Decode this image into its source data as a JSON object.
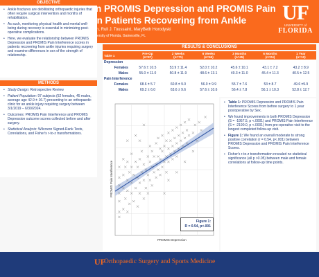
{
  "header": {
    "title": "Relationship Between PROMIS Depression and PROMIS Pain Interference Scores in Patients Recovering from Ankle Surgery",
    "authors": "Marissa Pazik, Ahmet T. Yildirim, Jennifer E. Hagen, Rull J. Toussaint, MaryBeth Horodyski",
    "affiliation": "Department of Orthopaedic Surgery & Sports Medicine, University of Florida, Gainesville, FL",
    "logo_mark": "UF",
    "logo_univ": "UNIVERSITY of",
    "logo_state": "FLORIDA"
  },
  "objective": {
    "heading": "OBJECTIVE",
    "bullets": [
      "Ankle fractures are debilitating orthopaedic injuries that often require surgical intervention and months of rehabilitation.",
      "As such, monitoring physical health and mental well-being during recovery is essential in minimizing post-operative complications.",
      "Here, we evaluate the relationship between PROMIS Depression and PROMIS Pain Interference scores in patients recovering from ankle injuries requiring surgery and examine differences in sex of the strength of relationship."
    ]
  },
  "methods": {
    "heading": "METHODS",
    "design_label": "Study Design",
    "design_text": ": Retrospective Review",
    "pop_label": "Patient Population",
    "pop_text": ": 97 subjects (52 females, 45 males, average age 42.9 ± 16.7) presenting to an orthopaedic clinic for an ankle injury requiring surgery between 3/1/2019 – 6/30/2024.",
    "outcomes_text": "Outcomes: PROMIS Pain Interference and PROMIS Depression outcome scores collected before and after surgery.",
    "stat_label": "Statistical Analysis",
    "stat_text": ": Wilcoxon Signed-Rank Tests, Correlations, and Fisher's r-to-z transformations."
  },
  "results": {
    "heading": "RESULTS & CONCLUSIONS",
    "table": {
      "corner": "Table 1",
      "columns": [
        "Pre-Op\n(n=97)",
        "2 Weeks\n(n=71)",
        "6 Weeks\n(n=55)",
        "3 Months\n(n=45)",
        "6 Months\n(n=24)",
        "1 Year\n(n=12)"
      ],
      "groups": [
        {
          "name": "Depression",
          "rows": [
            {
              "label": "Females",
              "values": [
                "57.6 ± 10.5",
                "53.9 ± 11.4",
                "52.0 ± 10.2",
                "45.6 ± 10.1",
                "43.1 ± 7.2",
                "43.2 ± 8.9"
              ]
            },
            {
              "label": "Males",
              "values": [
                "55.0 ± 11.0",
                "50.8 ± 11.9",
                "48.6 ± 13.1",
                "49.3 ± 11.0",
                "45.4 ± 11.3",
                "40.5 ± 12.5"
              ]
            }
          ]
        },
        {
          "name": "Pain Interference",
          "rows": [
            {
              "label": "Females",
              "values": [
                "68.6 ± 5.7",
                "60.8 ± 9.0",
                "56.0 ± 9.9",
                "55.7 ± 7.6",
                "53 ± 8.7",
                "49.6 ±9.9"
              ]
            },
            {
              "label": "Males",
              "values": [
                "69.2 ± 6.0",
                "63.6 ± 9.6",
                "57.6 ± 10.6",
                "56.4 ± 7.8",
                "56.1 ± 10.3",
                "52.8 ± 12.7"
              ]
            }
          ]
        }
      ]
    },
    "bullets": [
      {
        "bold": "Table 1:",
        "text": " PROMIS Depression and PROMIS Pain Interference Scores from before surgery to 1 year postoperative by Sex."
      },
      {
        "bold": "",
        "text": "We found improvements in both PROMIS Depression (S = -1957.5, p <.0001) and PROMIS Pain Interference (S = -2190.0, p <.0001) from pre-operative visit to the longest completed follow-up visit."
      },
      {
        "bold": "Figure 1:",
        "text": " We found an overall moderate to strong positive correlation (r = 0.54, p<.001) between PROMIS Depression and PROMIS Pain Interference Scores."
      },
      {
        "bold": "",
        "text": "Fisher's r-to-z transformation revealed no statistical significance (all p >0.05) between male and female correlations at follow-up time points."
      }
    ]
  },
  "figure": {
    "label": "Figure 1:",
    "stat": "R = 0.54, p<.001"
  },
  "chart_data": {
    "type": "scatter",
    "title": "",
    "xlabel": "PROMIS Depression",
    "ylabel": "PROMIS Pain Interference",
    "xlim": [
      34,
      82
    ],
    "ylim": [
      34,
      84
    ],
    "grid": true,
    "regression": {
      "x": [
        34,
        82
      ],
      "y": [
        50.8,
        74.8
      ]
    },
    "points": [
      [
        36,
        41
      ],
      [
        36,
        43
      ],
      [
        36,
        47
      ],
      [
        36,
        50
      ],
      [
        36,
        53
      ],
      [
        36,
        56
      ],
      [
        36,
        60
      ],
      [
        38,
        44
      ],
      [
        38,
        52
      ],
      [
        38,
        57
      ],
      [
        38,
        63
      ],
      [
        39,
        48
      ],
      [
        39,
        60
      ],
      [
        40,
        43
      ],
      [
        40,
        51
      ],
      [
        40,
        55
      ],
      [
        40,
        62
      ],
      [
        41,
        46
      ],
      [
        41,
        58
      ],
      [
        42,
        50
      ],
      [
        42,
        54
      ],
      [
        42,
        60
      ],
      [
        42,
        65
      ],
      [
        43,
        47
      ],
      [
        43,
        57
      ],
      [
        44,
        52
      ],
      [
        44,
        62
      ],
      [
        45,
        45
      ],
      [
        45,
        56
      ],
      [
        45,
        60
      ],
      [
        46,
        50
      ],
      [
        46,
        54
      ],
      [
        46,
        63
      ],
      [
        47,
        58
      ],
      [
        47,
        66
      ],
      [
        48,
        48
      ],
      [
        48,
        55
      ],
      [
        48,
        61
      ],
      [
        49,
        52
      ],
      [
        49,
        59
      ],
      [
        50,
        50
      ],
      [
        50,
        57
      ],
      [
        50,
        64
      ],
      [
        51,
        55
      ],
      [
        51,
        62
      ],
      [
        51,
        68
      ],
      [
        52,
        53
      ],
      [
        52,
        60
      ],
      [
        52,
        66
      ],
      [
        53,
        58
      ],
      [
        53,
        64
      ],
      [
        54,
        56
      ],
      [
        54,
        61
      ],
      [
        54,
        69
      ],
      [
        55,
        59
      ],
      [
        55,
        64
      ],
      [
        55,
        71
      ],
      [
        56,
        57
      ],
      [
        56,
        63
      ],
      [
        56,
        67
      ],
      [
        57,
        60
      ],
      [
        57,
        66
      ],
      [
        57,
        72
      ],
      [
        58,
        62
      ],
      [
        58,
        68
      ],
      [
        59,
        58
      ],
      [
        59,
        64
      ],
      [
        59,
        70
      ],
      [
        60,
        62
      ],
      [
        60,
        67
      ],
      [
        60,
        73
      ],
      [
        61,
        65
      ],
      [
        61,
        70
      ],
      [
        62,
        63
      ],
      [
        62,
        68
      ],
      [
        62,
        74
      ],
      [
        63,
        66
      ],
      [
        63,
        71
      ],
      [
        64,
        64
      ],
      [
        64,
        69
      ],
      [
        64,
        75
      ],
      [
        65,
        67
      ],
      [
        65,
        72
      ],
      [
        66,
        70
      ],
      [
        66,
        76
      ],
      [
        67,
        68
      ],
      [
        67,
        73
      ],
      [
        68,
        71
      ],
      [
        68,
        77
      ],
      [
        69,
        69
      ],
      [
        69,
        74
      ],
      [
        70,
        72
      ],
      [
        70,
        78
      ],
      [
        72,
        73
      ],
      [
        73,
        76
      ],
      [
        74,
        70
      ],
      [
        75,
        77
      ],
      [
        76,
        74
      ],
      [
        78,
        79
      ],
      [
        40,
        70
      ],
      [
        44,
        72
      ],
      [
        48,
        76
      ],
      [
        60,
        55
      ],
      [
        64,
        58
      ],
      [
        68,
        62
      ],
      [
        72,
        66
      ],
      [
        58,
        50
      ],
      [
        46,
        70
      ]
    ]
  },
  "footer": {
    "mark": "UF",
    "text": "Orthopaedic Surgery and Sports Medicine"
  },
  "colors": {
    "brand_orange": "#fa6a1d",
    "brand_blue": "#1f3b7a",
    "regression_line": "#3b5fa8"
  }
}
